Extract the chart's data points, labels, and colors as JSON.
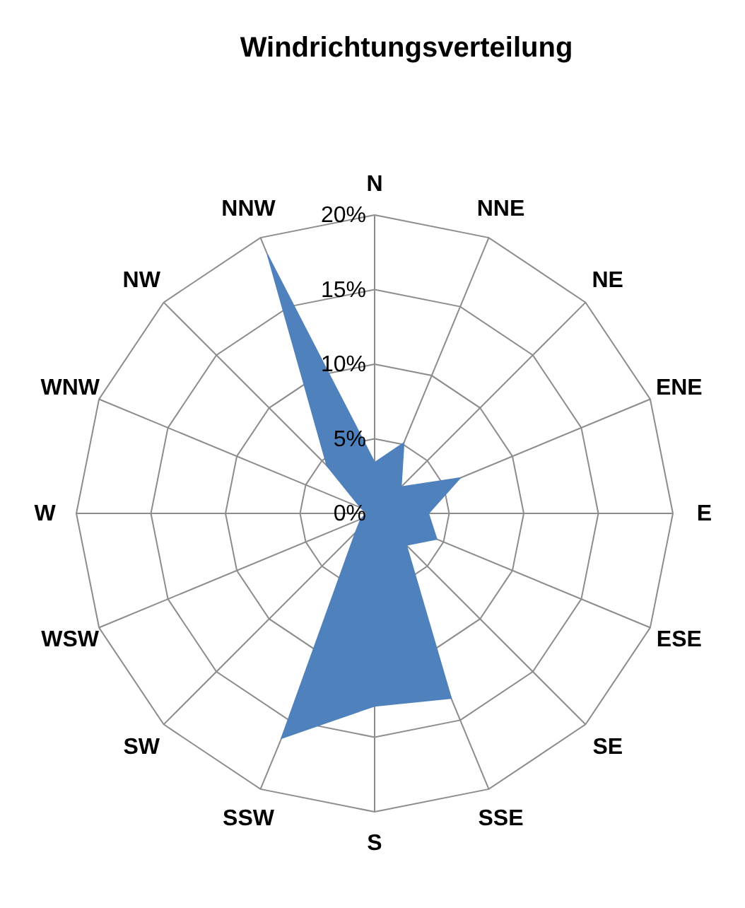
{
  "chart_data": {
    "type": "radar",
    "title": "Windrichtungsverteilung",
    "categories": [
      "N",
      "NNE",
      "NE",
      "ENE",
      "E",
      "ESE",
      "SE",
      "SSE",
      "S",
      "SSW",
      "SW",
      "WSW",
      "W",
      "WNW",
      "NW",
      "NNW"
    ],
    "series": [
      {
        "color": "#4f81bd",
        "values": [
          3.4,
          5.1,
          2.5,
          6.2,
          3.6,
          4.5,
          3.0,
          13.4,
          12.9,
          16.3,
          1.8,
          1.0,
          0.5,
          1.0,
          4.5,
          18.7
        ]
      }
    ],
    "ylim": [
      0,
      20
    ],
    "yticks": [
      {
        "value": 0,
        "label": "0%"
      },
      {
        "value": 5,
        "label": "5%"
      },
      {
        "value": 10,
        "label": "10%"
      },
      {
        "value": 15,
        "label": "15%"
      },
      {
        "value": 20,
        "label": "20%"
      }
    ],
    "grid": true
  }
}
